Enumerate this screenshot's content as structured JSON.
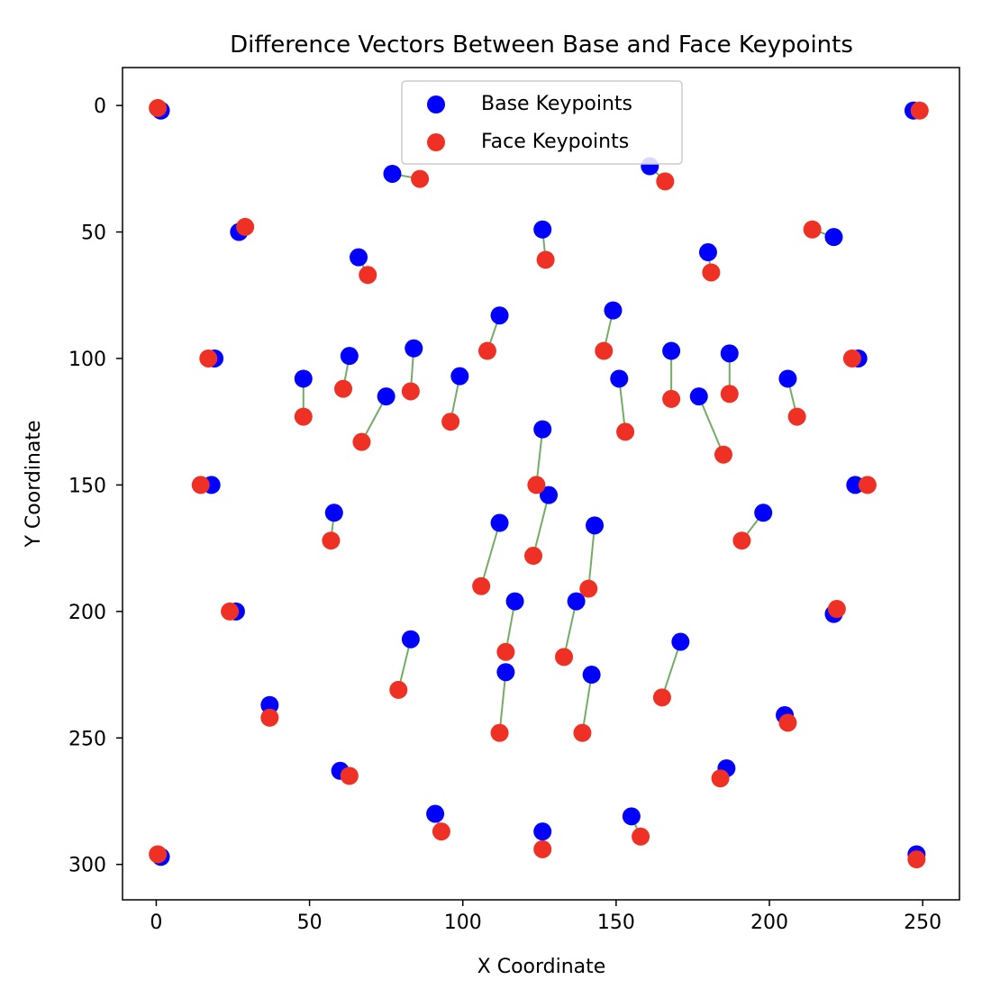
{
  "chart_data": {
    "type": "scatter",
    "title": "Difference Vectors Between Base and Face Keypoints",
    "xlabel": "X Coordinate",
    "ylabel": "Y Coordinate",
    "xlim": [
      -11,
      262
    ],
    "ylim": [
      314,
      -15
    ],
    "y_inverted": true,
    "grid": false,
    "legend": "upper center",
    "x_ticks": [
      0,
      50,
      100,
      150,
      200,
      250
    ],
    "y_ticks": [
      0,
      50,
      100,
      150,
      200,
      250,
      300
    ],
    "series": [
      {
        "name": "Base Keypoints",
        "color": "#0000ff",
        "points": [
          [
            1.5,
            2
          ],
          [
            247,
            2
          ],
          [
            77,
            27
          ],
          [
            161,
            24
          ],
          [
            27,
            50
          ],
          [
            126,
            49
          ],
          [
            221,
            52
          ],
          [
            66,
            60
          ],
          [
            180,
            58
          ],
          [
            112,
            83
          ],
          [
            149,
            81
          ],
          [
            19,
            100
          ],
          [
            63,
            99
          ],
          [
            84,
            96
          ],
          [
            168,
            97
          ],
          [
            187,
            98
          ],
          [
            229,
            100
          ],
          [
            48,
            108
          ],
          [
            75,
            115
          ],
          [
            99,
            107
          ],
          [
            151,
            108
          ],
          [
            177,
            115
          ],
          [
            206,
            108
          ],
          [
            126,
            128
          ],
          [
            18,
            150
          ],
          [
            128,
            154
          ],
          [
            228,
            150
          ],
          [
            58,
            161
          ],
          [
            112,
            165
          ],
          [
            143,
            166
          ],
          [
            198,
            161
          ],
          [
            117,
            196
          ],
          [
            137,
            196
          ],
          [
            26,
            200
          ],
          [
            221,
            201
          ],
          [
            83,
            211
          ],
          [
            171,
            212
          ],
          [
            114,
            224
          ],
          [
            142,
            225
          ],
          [
            37,
            237
          ],
          [
            205,
            241
          ],
          [
            60,
            263
          ],
          [
            186,
            262
          ],
          [
            91,
            280
          ],
          [
            155,
            281
          ],
          [
            126,
            287
          ],
          [
            1.5,
            297
          ],
          [
            248,
            296
          ]
        ]
      },
      {
        "name": "Face Keypoints",
        "color": "#ee3124",
        "points": [
          [
            0.5,
            1
          ],
          [
            249,
            2
          ],
          [
            86,
            29
          ],
          [
            166,
            30
          ],
          [
            29,
            48
          ],
          [
            127,
            61
          ],
          [
            214,
            49
          ],
          [
            69,
            67
          ],
          [
            181,
            66
          ],
          [
            108,
            97
          ],
          [
            146,
            97
          ],
          [
            17,
            100
          ],
          [
            61,
            112
          ],
          [
            83,
            113
          ],
          [
            168,
            116
          ],
          [
            187,
            114
          ],
          [
            227,
            100
          ],
          [
            48,
            123
          ],
          [
            67,
            133
          ],
          [
            96,
            125
          ],
          [
            153,
            129
          ],
          [
            185,
            138
          ],
          [
            209,
            123
          ],
          [
            124,
            150
          ],
          [
            14.5,
            150
          ],
          [
            123,
            178
          ],
          [
            232,
            150
          ],
          [
            57,
            172
          ],
          [
            106,
            190
          ],
          [
            141,
            191
          ],
          [
            191,
            172
          ],
          [
            114,
            216
          ],
          [
            133,
            218
          ],
          [
            24,
            200
          ],
          [
            222,
            199
          ],
          [
            79,
            231
          ],
          [
            165,
            234
          ],
          [
            112,
            248
          ],
          [
            139,
            248
          ],
          [
            37,
            242
          ],
          [
            206,
            244
          ],
          [
            63,
            265
          ],
          [
            184,
            266
          ],
          [
            93,
            287
          ],
          [
            158,
            289
          ],
          [
            126,
            294
          ],
          [
            0.5,
            296
          ],
          [
            248,
            298
          ]
        ]
      }
    ],
    "vector_color": "#5a9e4a"
  }
}
